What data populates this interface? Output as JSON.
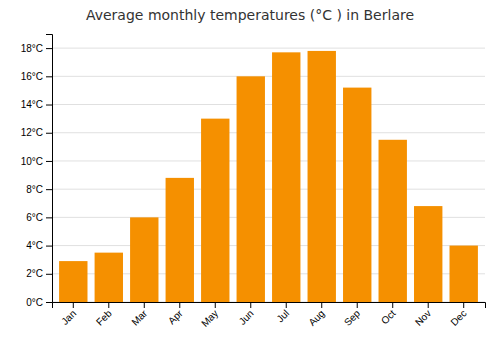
{
  "chart_data": {
    "type": "bar",
    "title": "Average monthly temperatures (°C ) in Berlare",
    "categories": [
      "Jan",
      "Feb",
      "Mar",
      "Apr",
      "May",
      "Jun",
      "Jul",
      "Aug",
      "Sep",
      "Oct",
      "Nov",
      "Dec"
    ],
    "values": [
      2.9,
      3.5,
      6.0,
      8.8,
      13.0,
      16.0,
      17.7,
      17.8,
      15.2,
      11.5,
      6.8,
      4.0
    ],
    "color": "#F59000",
    "ylim": [
      0,
      19
    ],
    "yticks": [
      {
        "value": 0,
        "label": "0°C"
      },
      {
        "value": 2,
        "label": "2°C"
      },
      {
        "value": 4,
        "label": "4°C"
      },
      {
        "value": 6,
        "label": "6°C"
      },
      {
        "value": 8,
        "label": "8°C"
      },
      {
        "value": 10,
        "label": "10°C"
      },
      {
        "value": 12,
        "label": "12°C"
      },
      {
        "value": 14,
        "label": "14°C"
      },
      {
        "value": 16,
        "label": "16°C"
      },
      {
        "value": 18,
        "label": "18°C"
      }
    ],
    "grid": true
  }
}
